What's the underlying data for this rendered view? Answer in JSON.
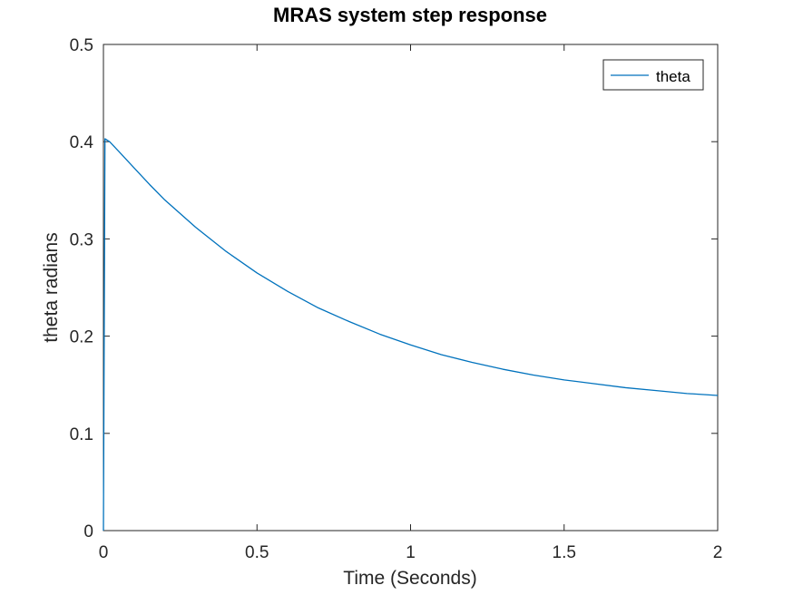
{
  "chart_data": {
    "type": "line",
    "title": "MRAS system step response",
    "xlabel": "Time (Seconds)",
    "ylabel": "theta radians",
    "xlim": [
      0,
      2
    ],
    "ylim": [
      0,
      0.5
    ],
    "xticks": [
      0,
      0.5,
      1,
      1.5,
      2
    ],
    "xtick_labels": [
      "0",
      "0.5",
      "1",
      "1.5",
      "2"
    ],
    "yticks": [
      0,
      0.1,
      0.2,
      0.3,
      0.4,
      0.5
    ],
    "ytick_labels": [
      "0",
      "0.1",
      "0.2",
      "0.3",
      "0.4",
      "0.5"
    ],
    "grid": false,
    "legend_position": "top-right",
    "series": [
      {
        "name": "theta",
        "color": "#0072BD",
        "x": [
          0,
          0.005,
          0.01,
          0.02,
          0.05,
          0.1,
          0.15,
          0.2,
          0.3,
          0.4,
          0.5,
          0.6,
          0.7,
          0.8,
          0.9,
          1.0,
          1.1,
          1.2,
          1.3,
          1.4,
          1.5,
          1.6,
          1.7,
          1.8,
          1.9,
          2.0
        ],
        "y": [
          0,
          0.403,
          0.402,
          0.4,
          0.39,
          0.373,
          0.356,
          0.34,
          0.312,
          0.287,
          0.265,
          0.246,
          0.229,
          0.215,
          0.202,
          0.191,
          0.181,
          0.173,
          0.166,
          0.16,
          0.155,
          0.151,
          0.147,
          0.144,
          0.141,
          0.139
        ]
      }
    ]
  }
}
